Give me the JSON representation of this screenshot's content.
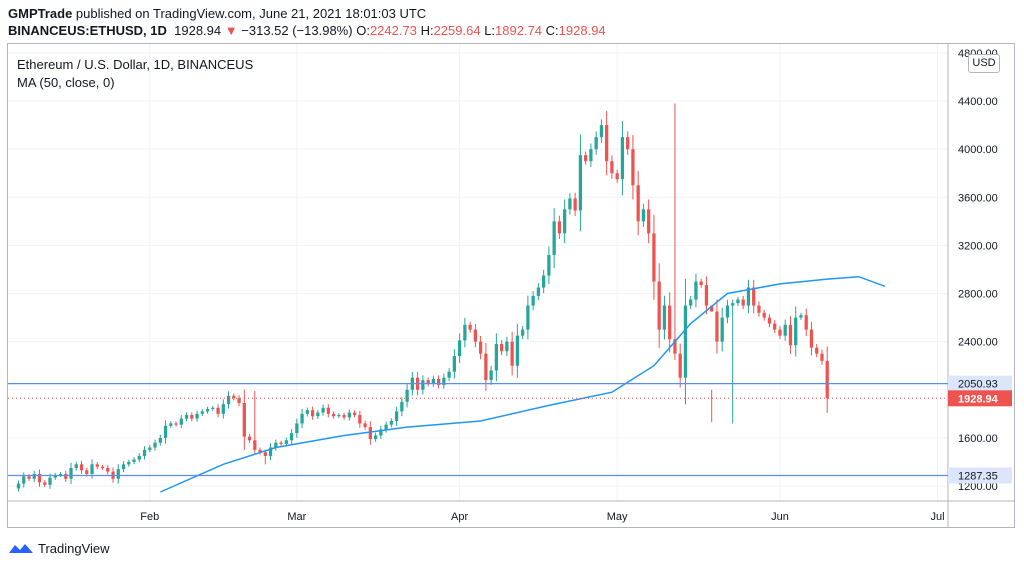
{
  "header": {
    "line1_author": "GMPTrade",
    "line1_rest": " published on TradingView.com, June 21, 2021 18:01:03 UTC",
    "symbol": "BINANCEUS:ETHUSD, 1D",
    "last": "1928.94",
    "change_arrow": "▼",
    "change": "−313.52 (−13.98%)",
    "o_label": "O:",
    "o_val": "2242.73",
    "h_label": "H:",
    "h_val": "2259.64",
    "l_label": "L:",
    "l_val": "1892.74",
    "c_label": "C:",
    "c_val": "1928.94"
  },
  "legend": {
    "title": "Ethereum / U.S. Dollar, 1D, BINANCEUS",
    "indicator": "MA (50, close, 0)"
  },
  "currency_button": "USD",
  "brand": "TradingView",
  "colors": {
    "up": "#26a69a",
    "down": "#ef5350",
    "ma": "#2196f3",
    "hline": "#5b8def"
  },
  "chart_data": {
    "type": "candlestick",
    "y_axis": {
      "min": 1150,
      "max": 4850,
      "ticks": [
        1200,
        1600,
        2000,
        2400,
        2800,
        3200,
        3600,
        4000,
        4400,
        4800
      ],
      "tick_labels": [
        "1200.00",
        "1600.00",
        "2000.00",
        "2400.00",
        "2800.00",
        "3200.00",
        "3600.00",
        "4000.00",
        "4400.00",
        "4800.00"
      ]
    },
    "x_axis": {
      "labels": [
        "Feb",
        "Mar",
        "Apr",
        "May",
        "Jun",
        "Jul"
      ],
      "label_dates": [
        "2021-02-01",
        "2021-03-01",
        "2021-04-01",
        "2021-05-01",
        "2021-06-01",
        "2021-07-01"
      ],
      "start": "2021-01-05",
      "end": "2021-07-03"
    },
    "grid": true,
    "horizontal_lines": [
      {
        "value": 2050.93,
        "label": "2050.93"
      },
      {
        "value": 1287.35,
        "label": "1287.35"
      }
    ],
    "last_price": {
      "value": 1928.94,
      "label": "1928.94"
    },
    "close_series": {
      "start_date": "2021-01-07",
      "first_open": 1180,
      "closes": [
        1220,
        1280,
        1260,
        1300,
        1230,
        1210,
        1270,
        1290,
        1300,
        1260,
        1350,
        1380,
        1330,
        1300,
        1380,
        1360,
        1350,
        1320,
        1260,
        1340,
        1380,
        1400,
        1420,
        1450,
        1500,
        1520,
        1560,
        1600,
        1700,
        1720,
        1710,
        1760,
        1790,
        1760,
        1800,
        1820,
        1840,
        1850,
        1800,
        1880,
        1950,
        1930,
        1890,
        1610,
        1580,
        1500,
        1480,
        1450,
        1520,
        1560,
        1550,
        1580,
        1640,
        1720,
        1800,
        1830,
        1780,
        1810,
        1850,
        1800,
        1780,
        1790,
        1770,
        1810,
        1790,
        1720,
        1690,
        1590,
        1620,
        1670,
        1710,
        1740,
        1820,
        1900,
        2000,
        2100,
        2000,
        2080,
        2050,
        2090,
        2040,
        2100,
        2150,
        2280,
        2410,
        2540,
        2500,
        2400,
        2300,
        2080,
        2160,
        2380,
        2320,
        2400,
        2200,
        2450,
        2500,
        2700,
        2780,
        2850,
        2950,
        3120,
        3400,
        3300,
        3500,
        3590,
        3490,
        3950,
        3900,
        4000,
        4100,
        4200,
        3900,
        3800,
        3750,
        4100,
        4000,
        3700,
        3400,
        3500,
        3300,
        2900,
        2500,
        2700,
        2420,
        2300,
        2100,
        2700,
        2750,
        2900,
        2870,
        2700,
        2650,
        2400,
        2600,
        2700,
        2720,
        2750,
        2700,
        2850,
        2700,
        2640,
        2600,
        2550,
        2500,
        2450,
        2540,
        2370,
        2600,
        2620,
        2500,
        2350,
        2300,
        2240,
        1929
      ],
      "highs": {
        "2021-05-12": 4380,
        "2021-05-19": 2000,
        "2021-05-23": 2750,
        "2021-02-21": 1990
      },
      "lows": {
        "2021-05-19": 1730,
        "2021-05-23": 1720,
        "2021-02-23": 1380
      }
    },
    "ma_series": {
      "name": "MA (50, close, 0)",
      "dates": [
        "2021-02-03",
        "2021-02-15",
        "2021-02-25",
        "2021-03-10",
        "2021-03-22",
        "2021-04-05",
        "2021-04-18",
        "2021-04-30",
        "2021-05-08",
        "2021-05-15",
        "2021-05-22",
        "2021-06-01",
        "2021-06-10",
        "2021-06-16",
        "2021-06-21"
      ],
      "values": [
        1150,
        1380,
        1520,
        1620,
        1690,
        1740,
        1870,
        1980,
        2200,
        2550,
        2800,
        2880,
        2920,
        2940,
        2860
      ]
    }
  }
}
